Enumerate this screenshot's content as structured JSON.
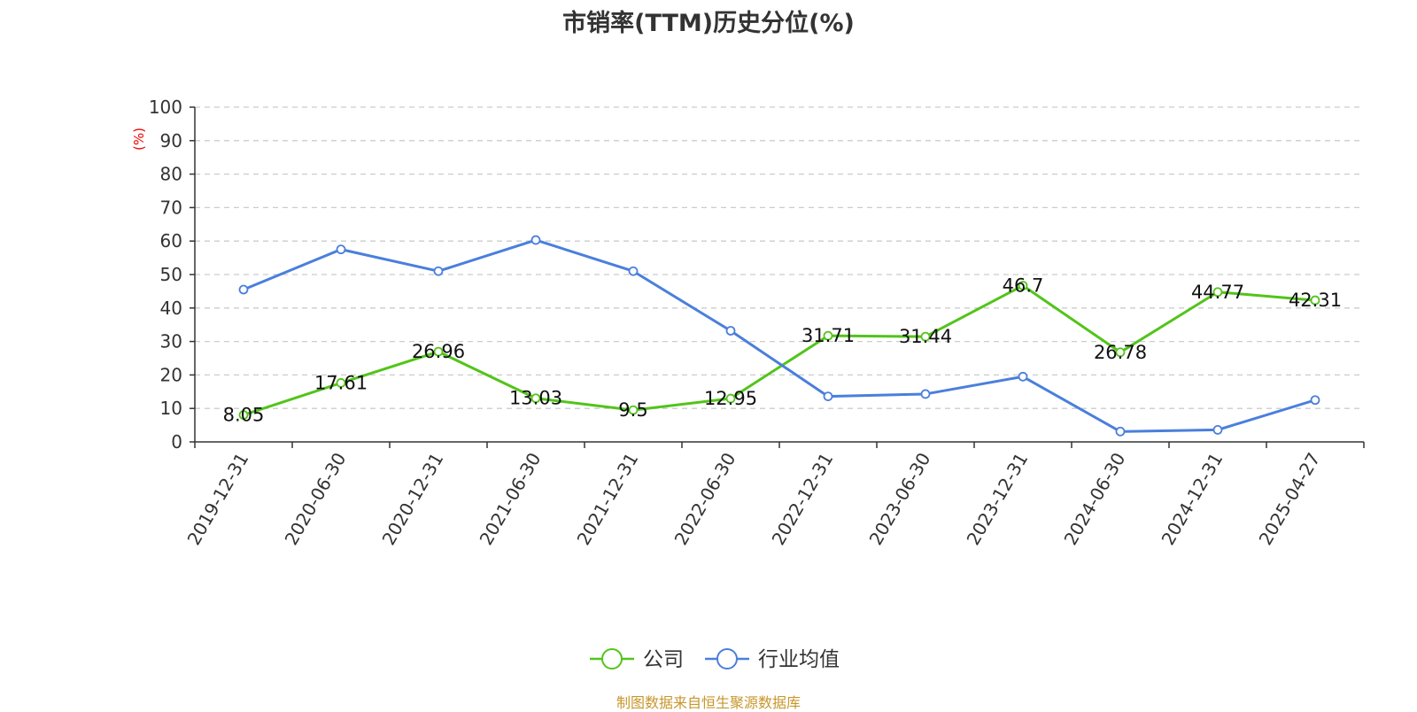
{
  "chart_data": {
    "type": "line",
    "title": "市销率(TTM)历史分位(%)",
    "ylabel": "(%)",
    "xlabel": "",
    "ylim": [
      0,
      100
    ],
    "yticks": [
      0,
      10,
      20,
      30,
      40,
      50,
      60,
      70,
      80,
      90,
      100
    ],
    "grid": true,
    "legend_position": "bottom-center",
    "categories": [
      "2019-12-31",
      "2020-06-30",
      "2020-12-31",
      "2021-06-30",
      "2021-12-31",
      "2022-06-30",
      "2022-12-31",
      "2023-06-30",
      "2023-12-31",
      "2024-06-30",
      "2024-12-31",
      "2025-04-27"
    ],
    "series": [
      {
        "name": "公司",
        "color": "#52c41a",
        "show_labels": true,
        "values": [
          8.05,
          17.61,
          26.96,
          13.03,
          9.5,
          12.95,
          31.71,
          31.44,
          46.7,
          26.78,
          44.77,
          42.31
        ],
        "labels": [
          "8.05",
          "17.61",
          "26.96",
          "13.03",
          "9.5",
          "12.95",
          "31.71",
          "31.44",
          "46.7",
          "26.78",
          "44.77",
          "42.31"
        ]
      },
      {
        "name": "行业均值",
        "color": "#4a7fdc",
        "show_labels": false,
        "values": [
          45.5,
          57.5,
          51.0,
          60.3,
          51.0,
          33.2,
          13.6,
          14.3,
          19.5,
          3.1,
          3.6,
          12.5
        ]
      }
    ]
  },
  "source_note": "制图数据来自恒生聚源数据库"
}
